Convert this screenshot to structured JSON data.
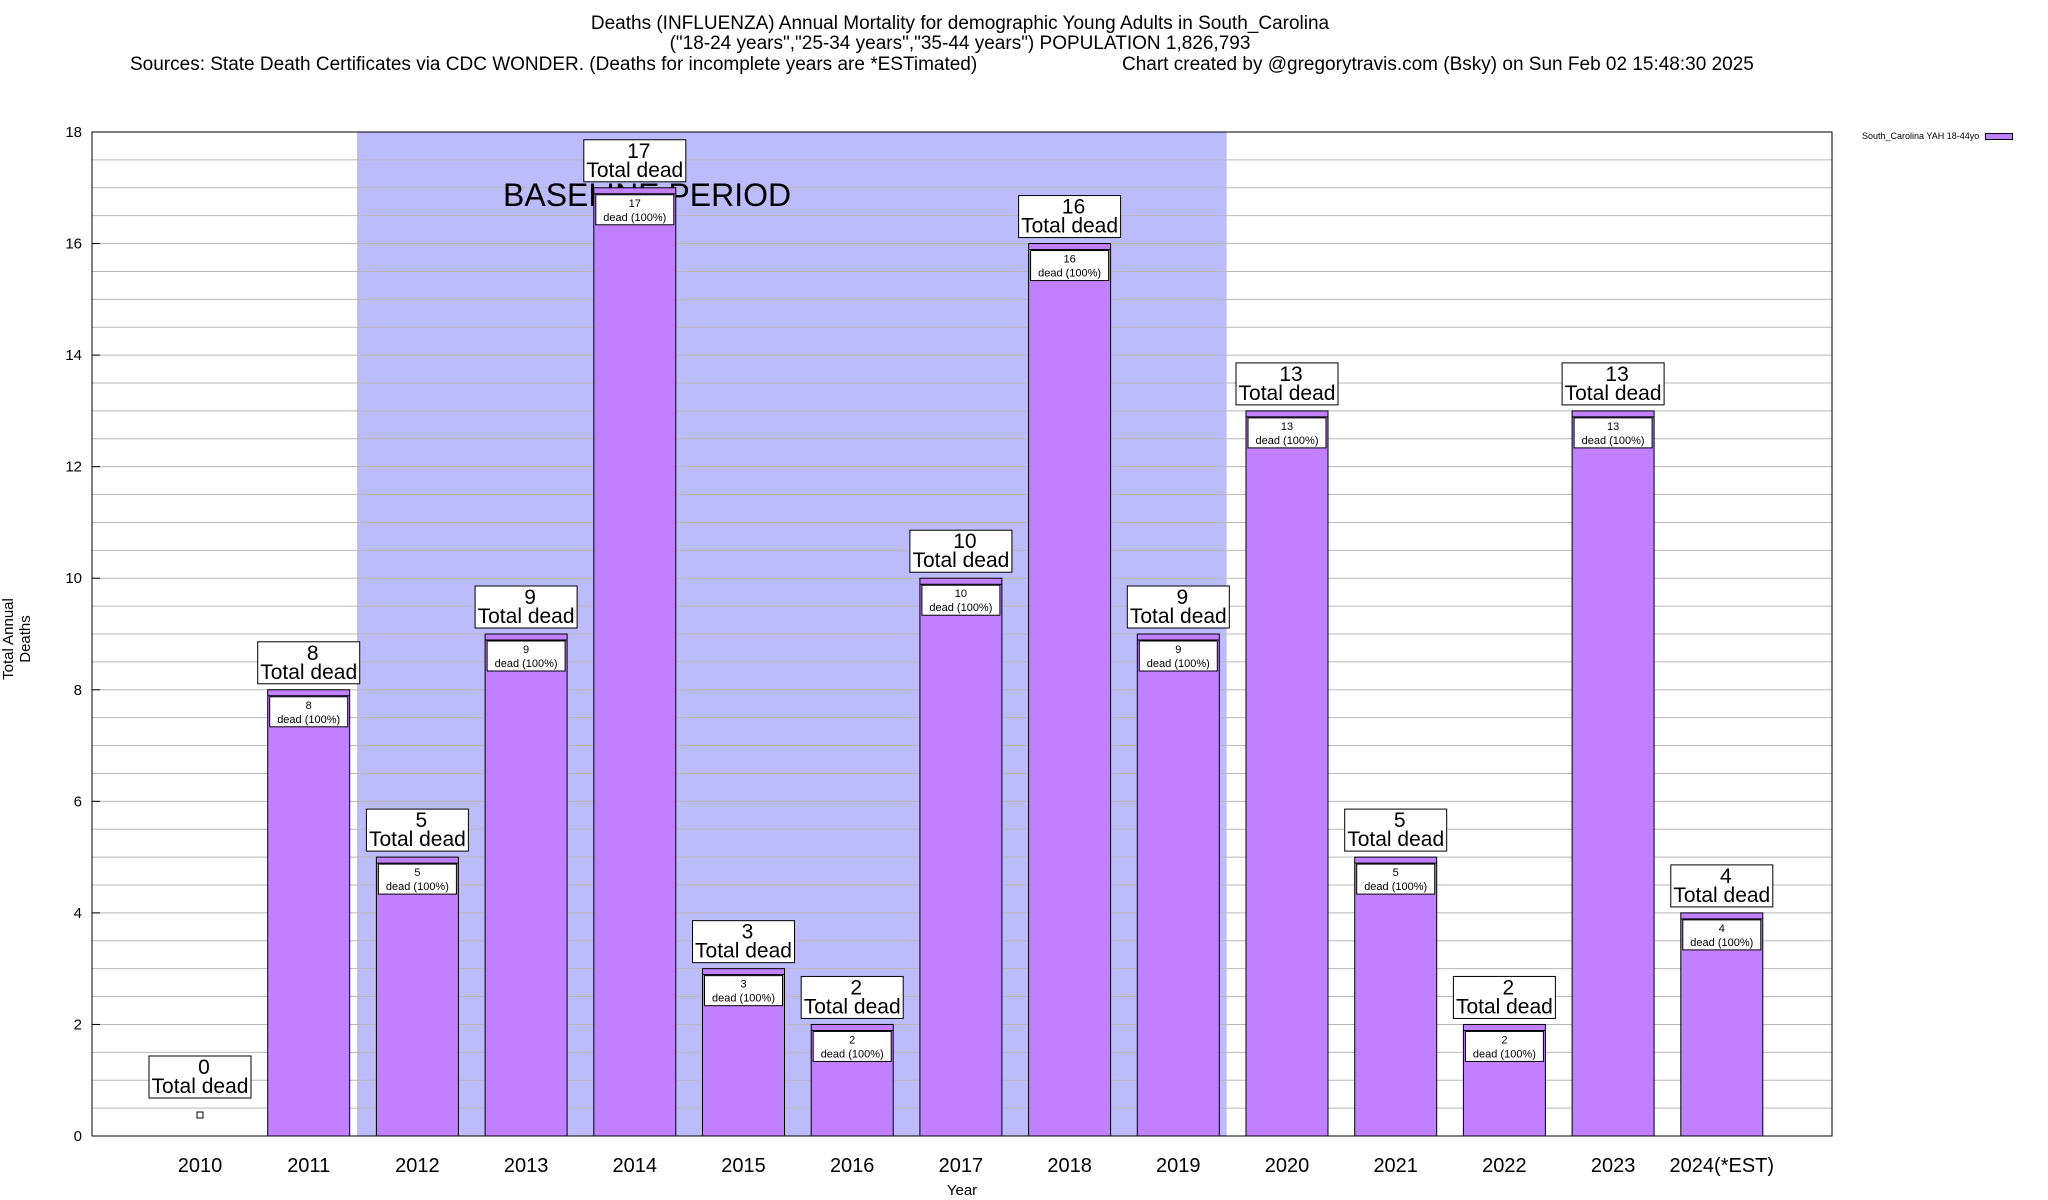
{
  "chart_data": {
    "type": "bar",
    "title_lines": [
      "Deaths (INFLUENZA) Annual Mortality for demographic Young Adults in South_Carolina",
      "(\"18-24 years\",\"25-34 years\",\"35-44 years\") POPULATION 1,826,793"
    ],
    "sources": "Sources: State Death Certificates via CDC WONDER. (Deaths for incomplete years are *ESTimated)",
    "credit": "Chart created by @gregorytravis.com (Bsky) on Sun Feb 02 15:48:30 2025",
    "xlabel": "Year",
    "ylabel": "Total Annual Deaths",
    "categories": [
      "2010",
      "2011",
      "2012",
      "2013",
      "2014",
      "2015",
      "2016",
      "2017",
      "2018",
      "2019",
      "2020",
      "2021",
      "2022",
      "2023",
      "2024(*EST)"
    ],
    "series": [
      {
        "name": "South_Carolina YAH 18-44yo",
        "values": [
          0,
          8,
          5,
          9,
          17,
          3,
          2,
          10,
          16,
          9,
          13,
          5,
          2,
          13,
          4
        ]
      }
    ],
    "ylim": [
      0,
      18
    ],
    "yticks": [
      0,
      2,
      4,
      6,
      8,
      10,
      12,
      14,
      16,
      18
    ],
    "grid": true,
    "legend_position": "top-right",
    "total_label_suffix": "Total dead",
    "inner_label_suffix": "dead (100%)",
    "baseline": {
      "label": "BASELINE PERIOD",
      "start": "2012",
      "end": "2019"
    },
    "colors": {
      "bar": "#c080ff",
      "baseline_band": "#bcbcfb",
      "grid": "#b8b8b8"
    }
  }
}
